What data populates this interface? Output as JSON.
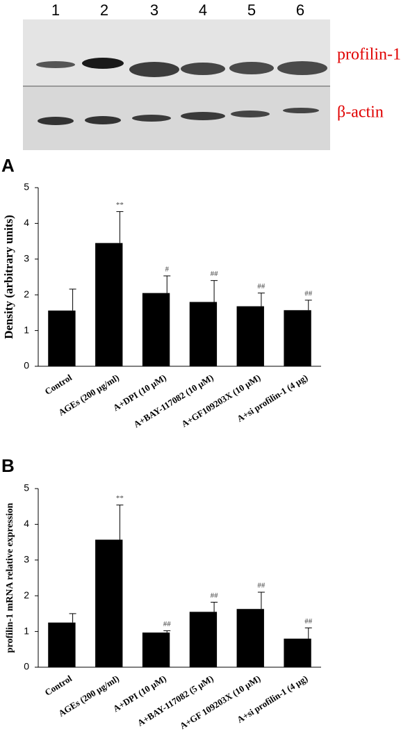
{
  "blot": {
    "lanes": [
      "1",
      "2",
      "3",
      "4",
      "5",
      "6"
    ],
    "labels": [
      "profilin-1",
      "β-actin"
    ]
  },
  "chart_data": [
    {
      "type": "bar",
      "panel": "A",
      "y_label": "Density (arbitrary units)",
      "categories": [
        "Control",
        "AGEs (200 µg/ml)",
        "A+DPI (10 µM)",
        "A+BAY-117082  (10 µM)",
        "A+GF109203X (10 µM)",
        "A+si profilin-1 (4 µg)"
      ],
      "values": [
        1.56,
        3.45,
        2.05,
        1.8,
        1.68,
        1.57
      ],
      "errors": [
        0.6,
        0.88,
        0.48,
        0.6,
        0.37,
        0.28
      ],
      "annotations": [
        null,
        "**",
        "#",
        "##",
        "##",
        "##"
      ],
      "color": "#000000",
      "ylim": [
        0,
        5
      ],
      "yticks": [
        0,
        1,
        2,
        3,
        4,
        5
      ]
    },
    {
      "type": "bar",
      "panel": "B",
      "y_label": "profilin-1 mRNA relative expression",
      "categories": [
        "Control",
        "AGEs (200 µg/ml)",
        "A+DPI (10 µM)",
        "A+BAY-117082 (5 µM)",
        "A+GF 109203X (10 µM)",
        "A+si profilin-1 (4 µg)"
      ],
      "values": [
        1.25,
        3.57,
        0.97,
        1.55,
        1.63,
        0.8
      ],
      "errors": [
        0.25,
        0.97,
        0.05,
        0.27,
        0.47,
        0.3
      ],
      "annotations": [
        null,
        "**",
        "##",
        "##",
        "##",
        "##"
      ],
      "color": "#000000",
      "ylim": [
        0,
        5
      ],
      "yticks": [
        0,
        1,
        2,
        3,
        4,
        5
      ]
    }
  ]
}
